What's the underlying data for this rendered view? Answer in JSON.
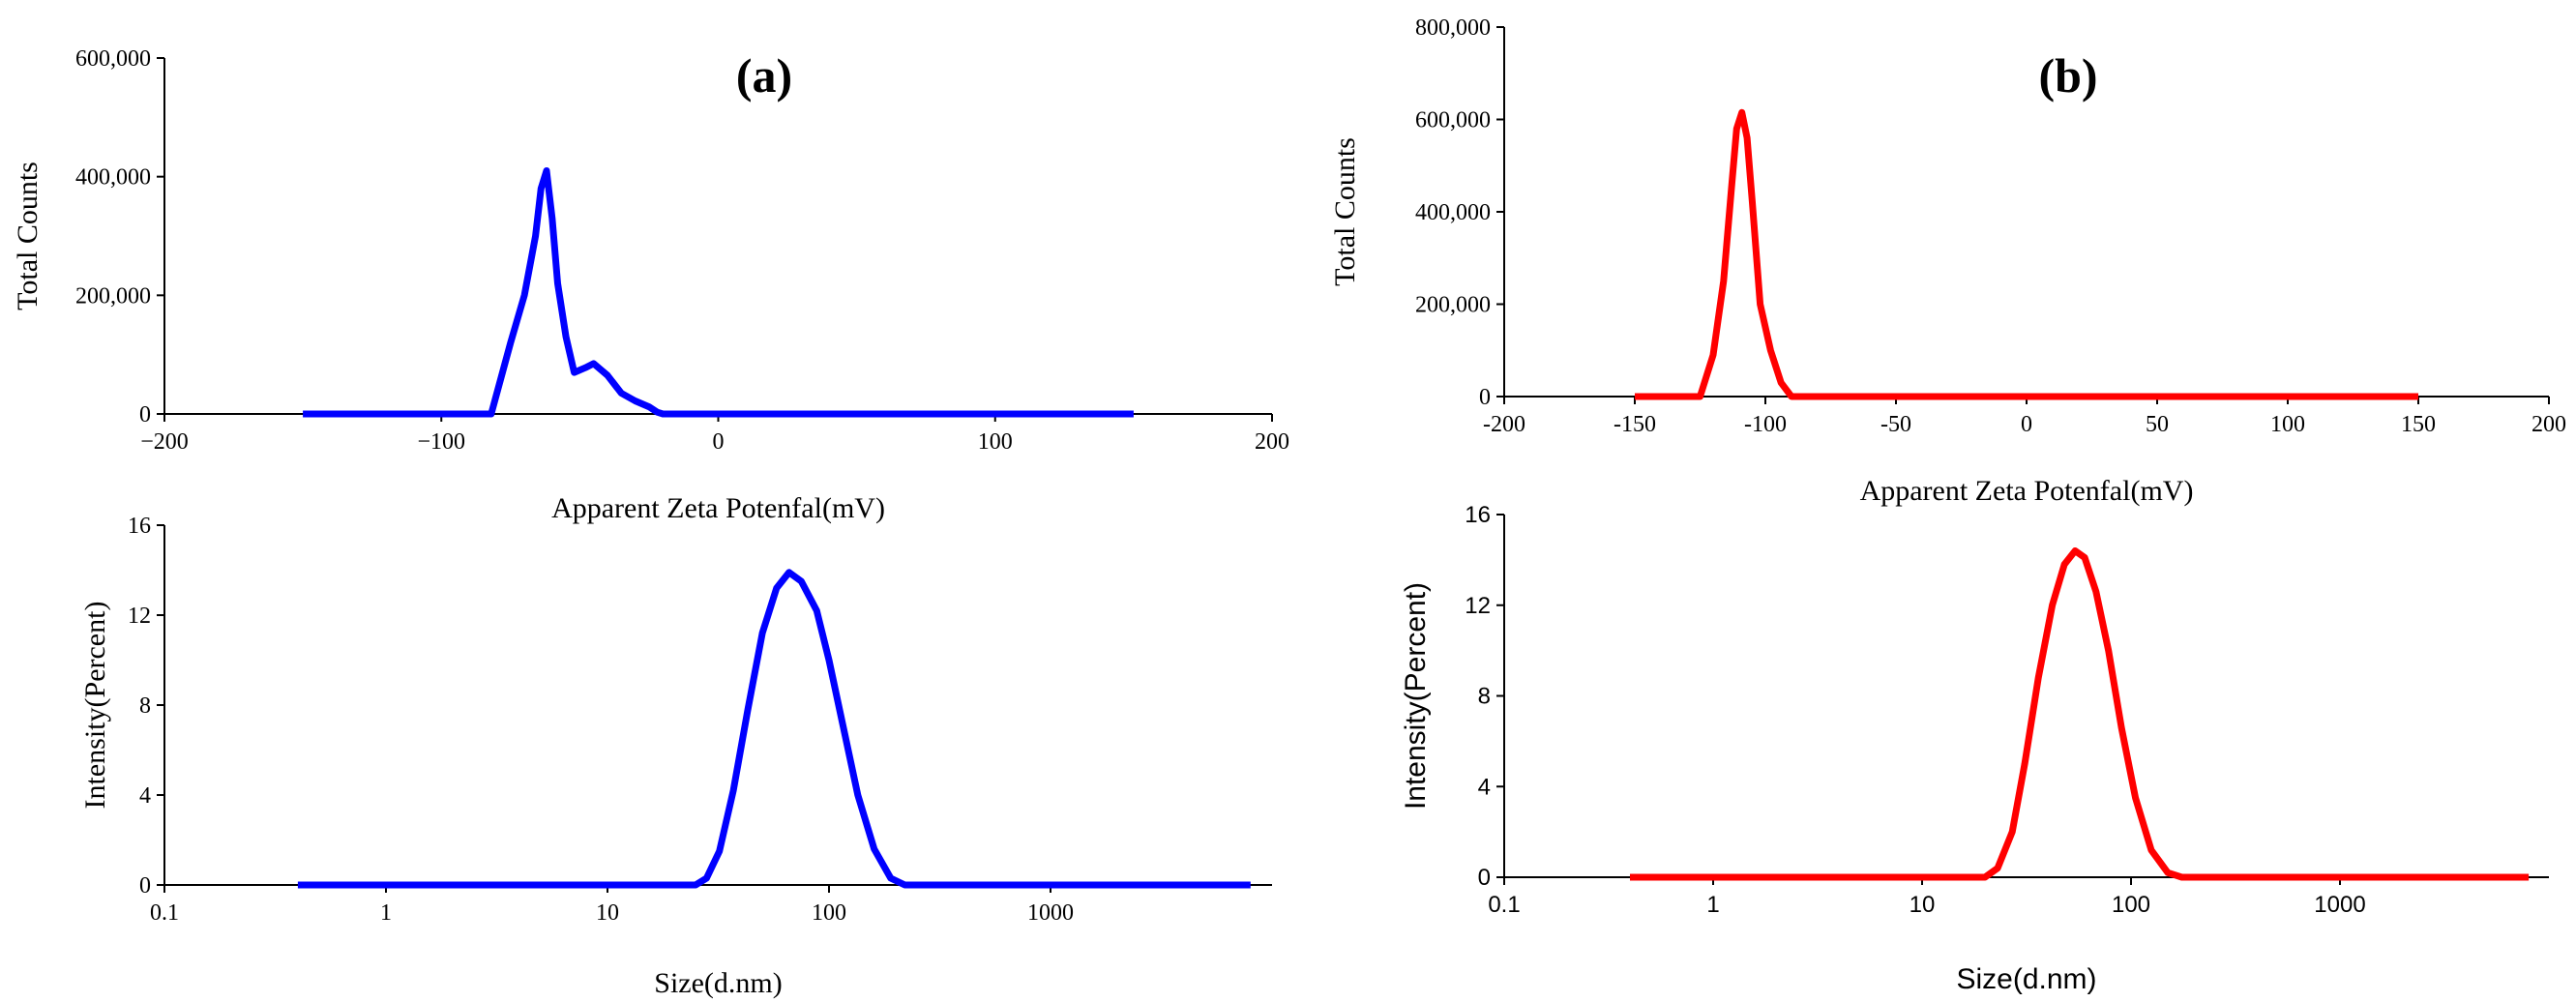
{
  "figure": {
    "panel_a_label": "(a)",
    "panel_b_label": "(b)"
  },
  "chart_data": [
    {
      "id": "a-zeta",
      "type": "line",
      "panel": "(a)",
      "xlabel": "Apparent Zeta Potenfal(mV)",
      "ylabel": "Total Counts",
      "xlim": [
        -200,
        200
      ],
      "ylim": [
        0,
        600000
      ],
      "x_ticks": [
        -200,
        -100,
        0,
        100,
        200
      ],
      "x_tick_labels": [
        "−200",
        "−100",
        "0",
        "100",
        "200"
      ],
      "y_ticks": [
        0,
        200000,
        400000,
        600000
      ],
      "y_tick_labels": [
        "0",
        "200,000",
        "400,000",
        "600,000"
      ],
      "color": "#0000ff",
      "x_scale": "linear",
      "series": [
        {
          "name": "zeta-a",
          "x": [
            -150,
            -82,
            -75,
            -70,
            -66,
            -64,
            -62,
            -60,
            -58,
            -55,
            -52,
            -48,
            -45,
            -40,
            -35,
            -30,
            -25,
            -22,
            -20,
            0,
            150
          ],
          "y": [
            0,
            0,
            120000,
            200000,
            300000,
            380000,
            410000,
            330000,
            220000,
            130000,
            70000,
            78000,
            85000,
            65000,
            35000,
            22000,
            12000,
            3000,
            0,
            0,
            0
          ]
        }
      ]
    },
    {
      "id": "a-size",
      "type": "line",
      "panel": "(a)",
      "xlabel": "Size(d.nm)",
      "ylabel": "Intensity(Percent)",
      "xlim": [
        0.1,
        10000
      ],
      "ylim": [
        0,
        16
      ],
      "x_scale": "log",
      "x_ticks": [
        0.1,
        1,
        10,
        100,
        1000
      ],
      "x_tick_labels": [
        "0.1",
        "1",
        "10",
        "100",
        "1000"
      ],
      "y_ticks": [
        0,
        4,
        8,
        12,
        16
      ],
      "y_tick_labels": [
        "0",
        "4",
        "8",
        "12",
        "16"
      ],
      "color": "#0000ff",
      "series": [
        {
          "name": "size-a",
          "x": [
            0.4,
            25,
            28,
            32,
            37,
            43,
            50,
            58,
            66,
            75,
            88,
            100,
            115,
            135,
            160,
            190,
            220,
            8000
          ],
          "y": [
            0,
            0,
            0.3,
            1.5,
            4.2,
            7.8,
            11.2,
            13.2,
            13.9,
            13.5,
            12.2,
            10.0,
            7.2,
            4.0,
            1.6,
            0.3,
            0,
            0
          ]
        }
      ]
    },
    {
      "id": "b-zeta",
      "type": "line",
      "panel": "(b)",
      "xlabel": "Apparent Zeta Potenfal(mV)",
      "ylabel": "Total Counts",
      "xlim": [
        -200,
        200
      ],
      "ylim": [
        0,
        800000
      ],
      "x_scale": "linear",
      "x_ticks": [
        -200,
        -150,
        -100,
        -50,
        0,
        50,
        100,
        150,
        200
      ],
      "x_tick_labels": [
        "-200",
        "-150",
        "-100",
        "-50",
        "0",
        "50",
        "100",
        "150",
        "200"
      ],
      "y_ticks": [
        0,
        200000,
        400000,
        600000,
        800000
      ],
      "y_tick_labels": [
        "0",
        "200,000",
        "400,000",
        "600,000",
        "800,000"
      ],
      "color": "#ff0000",
      "series": [
        {
          "name": "zeta-b",
          "x": [
            -150,
            -125,
            -120,
            -116,
            -113,
            -111,
            -109,
            -107,
            -105,
            -102,
            -98,
            -94,
            -90,
            150
          ],
          "y": [
            0,
            0,
            90000,
            250000,
            450000,
            580000,
            615000,
            560000,
            420000,
            200000,
            100000,
            30000,
            0,
            0
          ]
        }
      ]
    },
    {
      "id": "b-size",
      "type": "line",
      "panel": "(b)",
      "xlabel": "Size(d.nm)",
      "ylabel": "Intensity(Percent)",
      "xlim": [
        0.1,
        10000
      ],
      "ylim": [
        0,
        16
      ],
      "x_scale": "log",
      "x_ticks": [
        0.1,
        1,
        10,
        100,
        1000
      ],
      "x_tick_labels": [
        "0.1",
        "1",
        "10",
        "100",
        "1000"
      ],
      "y_ticks": [
        0,
        4,
        8,
        12,
        16
      ],
      "y_tick_labels": [
        "0",
        "4",
        "8",
        "12",
        "16"
      ],
      "color": "#ff0000",
      "series": [
        {
          "name": "size-b",
          "x": [
            0.4,
            20,
            23,
            27,
            31,
            36,
            42,
            48,
            54,
            60,
            68,
            78,
            90,
            105,
            125,
            150,
            175,
            8000
          ],
          "y": [
            0,
            0,
            0.4,
            2.0,
            5.0,
            8.8,
            12.0,
            13.8,
            14.4,
            14.1,
            12.6,
            10.0,
            6.6,
            3.5,
            1.2,
            0.2,
            0,
            0
          ]
        }
      ]
    }
  ]
}
